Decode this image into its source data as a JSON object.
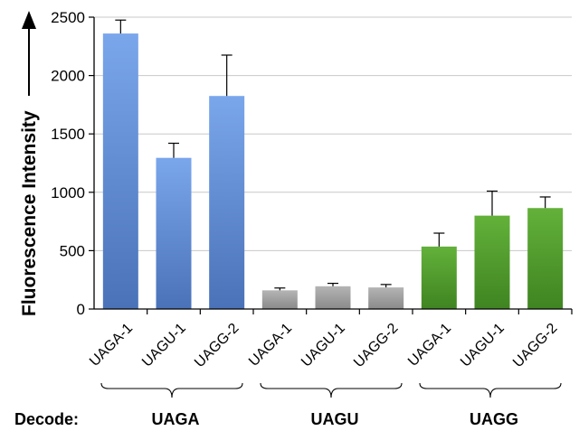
{
  "chart_data": {
    "type": "bar",
    "title": "",
    "xlabel": "",
    "ylabel": "Fluorescence Intensity",
    "ylim": [
      0,
      2500
    ],
    "yticks": [
      0,
      500,
      1000,
      1500,
      2000,
      2500
    ],
    "grid": true,
    "categories": [
      "UAGA-1",
      "UAGU-1",
      "UAGG-2",
      "UAGA-1",
      "UAGU-1",
      "UAGG-2",
      "UAGA-1",
      "UAGU-1",
      "UAGG-2"
    ],
    "values": [
      2360,
      1295,
      1825,
      160,
      195,
      185,
      535,
      800,
      865
    ],
    "errors": [
      115,
      125,
      350,
      20,
      25,
      25,
      115,
      210,
      95
    ],
    "groups": [
      {
        "label": "UAGA",
        "start": 0,
        "end": 2,
        "color": "#5b8bd6"
      },
      {
        "label": "UAGU",
        "start": 3,
        "end": 5,
        "color": "#a0a0a0"
      },
      {
        "label": "UAGG",
        "start": 6,
        "end": 8,
        "color": "#4e9a2a"
      }
    ],
    "decode_label": "Decode:"
  }
}
